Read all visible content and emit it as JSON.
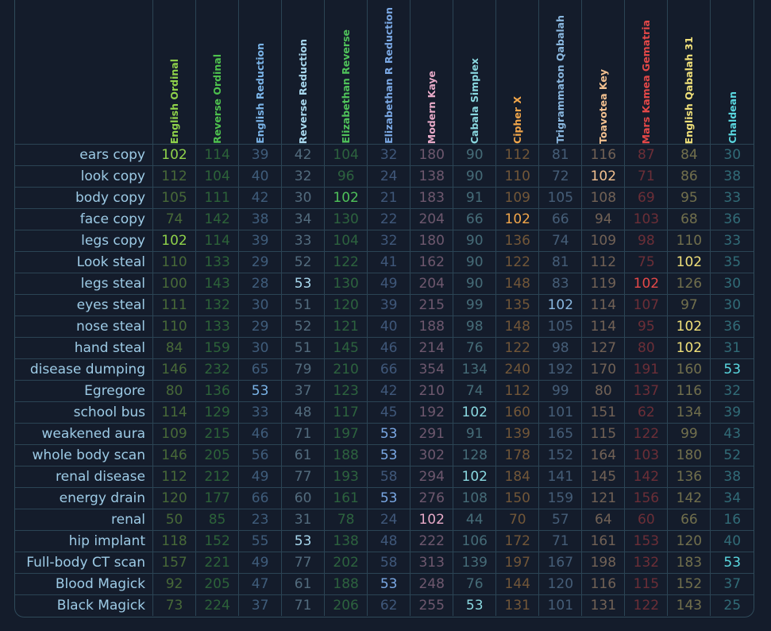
{
  "ciphers": [
    {
      "name": "English Ordinal",
      "color": "#8fd24a"
    },
    {
      "name": "Reverse Ordinal",
      "color": "#4ec24e"
    },
    {
      "name": "English Reduction",
      "color": "#7ab4e8"
    },
    {
      "name": "Reverse Reduction",
      "color": "#a8d8ee"
    },
    {
      "name": "Elizabethan Reverse",
      "color": "#4fc25a"
    },
    {
      "name": "Elizabethan R Reduction",
      "color": "#7aa8e4"
    },
    {
      "name": "Modern Kaye",
      "color": "#e8aac8"
    },
    {
      "name": "Cabala Simplex",
      "color": "#8ad8e0"
    },
    {
      "name": "Cipher X",
      "color": "#f2a64a"
    },
    {
      "name": "Trigrammaton Qabalah",
      "color": "#8ab8e0"
    },
    {
      "name": "Toavotea Key",
      "color": "#f2c090"
    },
    {
      "name": "Mars Kamea Gematria",
      "color": "#e44848"
    },
    {
      "name": "English Qabalah 31",
      "color": "#f0e07a"
    },
    {
      "name": "Chaldean",
      "color": "#5ad8e0"
    }
  ],
  "rows": [
    {
      "phrase": "ears copy",
      "values": [
        "102",
        "114",
        "39",
        "42",
        "104",
        "32",
        "180",
        "90",
        "112",
        "81",
        "116",
        "87",
        "84",
        "30"
      ]
    },
    {
      "phrase": "look copy",
      "values": [
        "112",
        "104",
        "40",
        "32",
        "96",
        "24",
        "138",
        "90",
        "110",
        "72",
        "102",
        "71",
        "86",
        "38"
      ]
    },
    {
      "phrase": "body copy",
      "values": [
        "105",
        "111",
        "42",
        "30",
        "102",
        "21",
        "183",
        "91",
        "109",
        "105",
        "108",
        "69",
        "95",
        "33"
      ]
    },
    {
      "phrase": "face copy",
      "values": [
        "74",
        "142",
        "38",
        "34",
        "130",
        "22",
        "204",
        "66",
        "102",
        "66",
        "94",
        "103",
        "68",
        "36"
      ]
    },
    {
      "phrase": "legs copy",
      "values": [
        "102",
        "114",
        "39",
        "33",
        "104",
        "32",
        "180",
        "90",
        "136",
        "74",
        "109",
        "98",
        "110",
        "33"
      ]
    },
    {
      "phrase": "Look steal",
      "values": [
        "110",
        "133",
        "29",
        "52",
        "122",
        "41",
        "162",
        "90",
        "122",
        "81",
        "112",
        "75",
        "102",
        "35"
      ]
    },
    {
      "phrase": "legs steal",
      "values": [
        "100",
        "143",
        "28",
        "53",
        "130",
        "49",
        "204",
        "90",
        "148",
        "83",
        "119",
        "102",
        "126",
        "30"
      ]
    },
    {
      "phrase": "eyes steal",
      "values": [
        "111",
        "132",
        "30",
        "51",
        "120",
        "39",
        "215",
        "99",
        "135",
        "102",
        "114",
        "107",
        "97",
        "30"
      ]
    },
    {
      "phrase": "nose steal",
      "values": [
        "110",
        "133",
        "29",
        "52",
        "121",
        "40",
        "188",
        "98",
        "148",
        "105",
        "114",
        "95",
        "102",
        "36"
      ]
    },
    {
      "phrase": "hand steal",
      "values": [
        "84",
        "159",
        "30",
        "51",
        "145",
        "46",
        "214",
        "76",
        "122",
        "98",
        "127",
        "80",
        "102",
        "31"
      ]
    },
    {
      "phrase": "disease dumping",
      "values": [
        "146",
        "232",
        "65",
        "79",
        "210",
        "66",
        "354",
        "134",
        "240",
        "192",
        "170",
        "191",
        "160",
        "53"
      ]
    },
    {
      "phrase": "Egregore",
      "values": [
        "80",
        "136",
        "53",
        "37",
        "123",
        "42",
        "210",
        "74",
        "112",
        "99",
        "80",
        "137",
        "116",
        "32"
      ]
    },
    {
      "phrase": "school bus",
      "values": [
        "114",
        "129",
        "33",
        "48",
        "117",
        "45",
        "192",
        "102",
        "160",
        "101",
        "151",
        "62",
        "134",
        "39"
      ]
    },
    {
      "phrase": "weakened aura",
      "values": [
        "109",
        "215",
        "46",
        "71",
        "197",
        "53",
        "291",
        "91",
        "139",
        "165",
        "115",
        "122",
        "99",
        "43"
      ]
    },
    {
      "phrase": "whole body scan",
      "values": [
        "146",
        "205",
        "56",
        "61",
        "188",
        "53",
        "302",
        "128",
        "178",
        "152",
        "164",
        "103",
        "180",
        "52"
      ]
    },
    {
      "phrase": "renal disease",
      "values": [
        "112",
        "212",
        "49",
        "77",
        "193",
        "58",
        "294",
        "102",
        "184",
        "141",
        "145",
        "142",
        "136",
        "38"
      ]
    },
    {
      "phrase": "energy drain",
      "values": [
        "120",
        "177",
        "66",
        "60",
        "161",
        "53",
        "276",
        "108",
        "150",
        "159",
        "121",
        "156",
        "142",
        "34"
      ]
    },
    {
      "phrase": "renal",
      "values": [
        "50",
        "85",
        "23",
        "31",
        "78",
        "24",
        "102",
        "44",
        "70",
        "57",
        "64",
        "60",
        "66",
        "16"
      ]
    },
    {
      "phrase": "hip implant",
      "values": [
        "118",
        "152",
        "55",
        "53",
        "138",
        "48",
        "222",
        "106",
        "172",
        "71",
        "161",
        "153",
        "120",
        "40"
      ]
    },
    {
      "phrase": "Full-body CT scan",
      "values": [
        "157",
        "221",
        "49",
        "77",
        "202",
        "58",
        "313",
        "139",
        "197",
        "167",
        "198",
        "132",
        "183",
        "53"
      ]
    },
    {
      "phrase": "Blood Magick",
      "values": [
        "92",
        "205",
        "47",
        "61",
        "188",
        "53",
        "248",
        "76",
        "144",
        "120",
        "116",
        "115",
        "152",
        "37"
      ]
    },
    {
      "phrase": "Black Magick",
      "values": [
        "73",
        "224",
        "37",
        "71",
        "206",
        "62",
        "255",
        "53",
        "131",
        "101",
        "131",
        "122",
        "143",
        "25"
      ]
    }
  ],
  "highlight_values": [
    "102",
    "53"
  ]
}
